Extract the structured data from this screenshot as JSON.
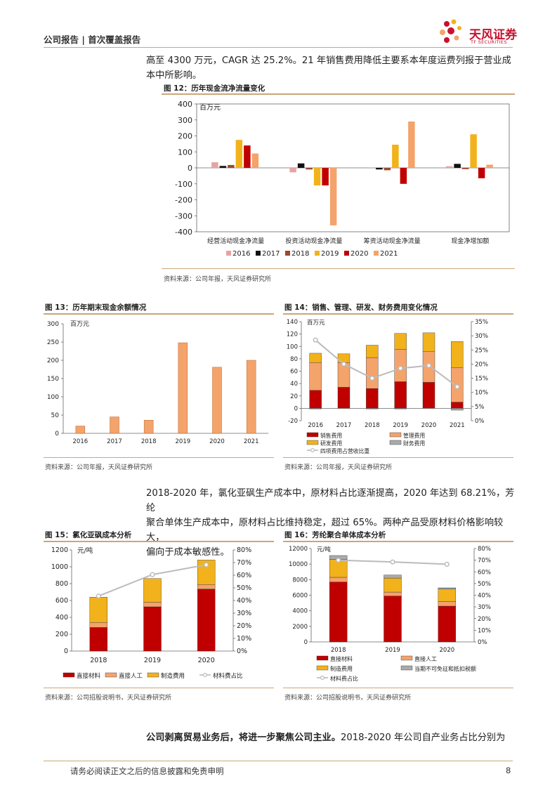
{
  "header": {
    "left": "公司报告 | 首次覆盖报告",
    "logo_cn": "天风证券",
    "logo_en": "TF SECURITIES"
  },
  "para1": {
    "line1": "高至 4300 万元，CAGR 达 25.2%。21 年销售费用降低主要系本年度运费列报于营业成",
    "line2": "本中所影响。"
  },
  "para2": {
    "line1": "2018-2020 年，氯化亚砜生产成本中，原材料占比逐渐提高，2020 年达到 68.21%，芳纶",
    "line2": "聚合单体生产成本中，原材料占比维持稳定，超过 65%。两种产品受原材料价格影响较大，",
    "line3": "偏向于成本敏感性。"
  },
  "para3": {
    "bold": "公司剥离贸易业务后，将进一步聚焦公司主业。",
    "rest": "2018-2020 年公司自产业务占比分别为"
  },
  "figures": {
    "fig12": {
      "title": "图 12：历年现金流净流量变化",
      "source": "资料来源：公司年报，天风证券研究所"
    },
    "fig13": {
      "title": "图 13：历年期末现金余额情况",
      "source": "资料来源：公司年报，天风证券研究所"
    },
    "fig14": {
      "title": "图 14：销售、管理、研发、财务费用变化情况",
      "source": "资料来源：公司年报，天风证券研究所"
    },
    "fig15": {
      "title": "图 15：氯化亚砜成本分析",
      "source": "资料来源：公司招股说明书，天风证券研究所"
    },
    "fig16": {
      "title": "图 16：芳纶聚合单体成本分析",
      "source": "资料来源：公司招股说明书，天风证券研究所"
    }
  },
  "footer": {
    "disclaimer": "请务必阅读正文之后的信息披露和免责申明",
    "page": "8"
  },
  "chart_data": [
    {
      "id": "fig12",
      "type": "bar",
      "unit": "百万元",
      "categories": [
        "经营活动现金净流量",
        "投资活动现金净流量",
        "筹资活动现金净流量",
        "现金净增加额"
      ],
      "ylim": [
        -400,
        400
      ],
      "yticks": [
        -400,
        -300,
        -200,
        -100,
        0,
        100,
        200,
        300,
        400
      ],
      "legend_position": "bottom",
      "series": [
        {
          "name": "2016",
          "color": "#e7a3a3",
          "values": [
            35,
            -28,
            3,
            10
          ]
        },
        {
          "name": "2017",
          "color": "#111111",
          "values": [
            12,
            28,
            -10,
            25
          ]
        },
        {
          "name": "2018",
          "color": "#9c4a2a",
          "values": [
            18,
            -10,
            -15,
            -8
          ]
        },
        {
          "name": "2019",
          "color": "#f2b21b",
          "values": [
            175,
            -110,
            145,
            210
          ]
        },
        {
          "name": "2020",
          "color": "#c00000",
          "values": [
            140,
            -110,
            -100,
            -65
          ]
        },
        {
          "name": "2021",
          "color": "#f4a36b",
          "values": [
            90,
            -360,
            290,
            20
          ]
        }
      ]
    },
    {
      "id": "fig13",
      "type": "bar",
      "unit": "百万元",
      "categories": [
        "2016",
        "2017",
        "2018",
        "2019",
        "2020",
        "2021"
      ],
      "values": [
        20,
        45,
        36,
        248,
        181,
        200
      ],
      "ylim": [
        0,
        300
      ],
      "yticks": [
        0,
        50,
        100,
        150,
        200,
        250,
        300
      ],
      "color": "#f4a36b"
    },
    {
      "id": "fig14",
      "type": "bar",
      "unit": "百万元",
      "categories": [
        "2016",
        "2017",
        "2018",
        "2019",
        "2020",
        "2021"
      ],
      "ylim": [
        -20,
        140
      ],
      "yticks": [
        -20,
        0,
        20,
        40,
        60,
        80,
        100,
        120,
        140
      ],
      "y2lim": [
        0,
        35
      ],
      "y2ticks": [
        "0%",
        "5%",
        "10%",
        "15%",
        "20%",
        "25%",
        "30%",
        "35%"
      ],
      "legend_position": "bottom",
      "series": [
        {
          "name": "销售费用",
          "color": "#c00000",
          "values": [
            29,
            34,
            32,
            43,
            42,
            10
          ]
        },
        {
          "name": "管理费用",
          "color": "#f4a36b",
          "values": [
            45,
            40,
            50,
            52,
            50,
            56
          ]
        },
        {
          "name": "研发费用",
          "color": "#f2b21b",
          "values": [
            15,
            14,
            20,
            26,
            30,
            42
          ]
        },
        {
          "name": "财务费用",
          "color": "#aaaaaa",
          "values": [
            -1,
            0,
            -1,
            -1,
            0,
            -3
          ]
        }
      ],
      "line": {
        "name": "四项费用占营收比重",
        "color": "#bbbbbb",
        "values": [
          28.5,
          20.0,
          15.0,
          18.5,
          19.5,
          12.0
        ]
      }
    },
    {
      "id": "fig15",
      "type": "bar",
      "unit": "元/吨",
      "categories": [
        "2018",
        "2019",
        "2020"
      ],
      "ylim": [
        0,
        1200
      ],
      "yticks": [
        0,
        200,
        400,
        600,
        800,
        1000,
        1200
      ],
      "y2ticks": [
        "0%",
        "10%",
        "20%",
        "30%",
        "40%",
        "50%",
        "60%",
        "70%",
        "80%"
      ],
      "legend_position": "bottom",
      "series": [
        {
          "name": "直接材料",
          "color": "#c00000",
          "values": [
            280,
            525,
            735
          ]
        },
        {
          "name": "直接人工",
          "color": "#f4a36b",
          "values": [
            60,
            55,
            55
          ]
        },
        {
          "name": "制造费用",
          "color": "#f2b21b",
          "values": [
            300,
            280,
            290
          ]
        }
      ],
      "line": {
        "name": "材料费占比",
        "color": "#bbbbbb",
        "values": [
          43.5,
          60.5,
          68.21
        ]
      }
    },
    {
      "id": "fig16",
      "type": "bar",
      "unit": "元/吨",
      "categories": [
        "2018",
        "2019",
        "2020"
      ],
      "ylim": [
        0,
        12000
      ],
      "yticks": [
        0,
        2000,
        4000,
        6000,
        8000,
        10000,
        12000
      ],
      "y2ticks": [
        "0%",
        "10%",
        "20%",
        "30%",
        "40%",
        "50%",
        "60%",
        "70%",
        "80%"
      ],
      "legend_position": "bottom",
      "series": [
        {
          "name": "直接材料",
          "color": "#c00000",
          "values": [
            7700,
            5900,
            4600
          ]
        },
        {
          "name": "直接人工",
          "color": "#f4a36b",
          "values": [
            600,
            500,
            600
          ]
        },
        {
          "name": "制造费用",
          "color": "#f2b21b",
          "values": [
            2300,
            1800,
            1600
          ]
        },
        {
          "name": "当期不可免征和抵扣税额",
          "color": "#aaaaaa",
          "values": [
            500,
            400,
            150
          ]
        }
      ],
      "line": {
        "name": "材料费占比",
        "color": "#bbbbbb",
        "values": [
          70,
          68.5,
          66.5
        ]
      }
    }
  ]
}
